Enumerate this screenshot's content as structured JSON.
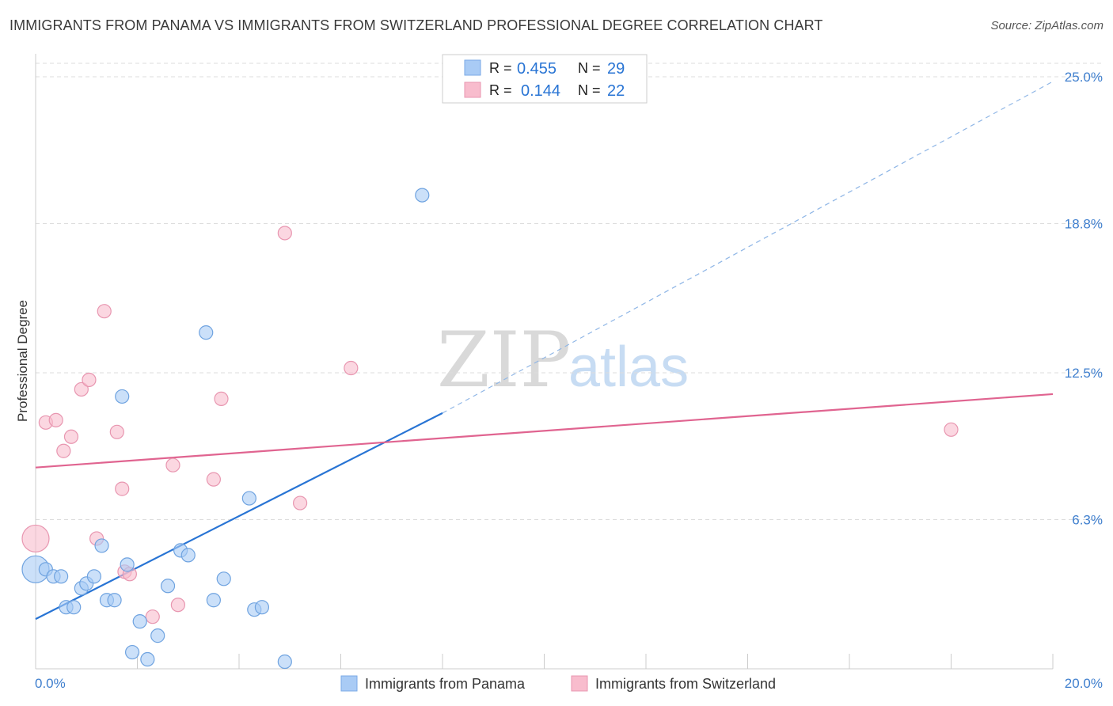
{
  "title": "IMMIGRANTS FROM PANAMA VS IMMIGRANTS FROM SWITZERLAND PROFESSIONAL DEGREE CORRELATION CHART",
  "source": "Source: ZipAtlas.com",
  "watermark": {
    "zip": "ZIP",
    "atlas": "atlas"
  },
  "colors": {
    "panama": "#2874d4",
    "panama_fill": "#a9cbf5",
    "switzerland": "#e06490",
    "switzerland_fill": "#f8bccd",
    "tick_label": "#3f7fce",
    "grid": "#dddddd"
  },
  "legend_top": [
    {
      "r_label": "R =",
      "r_value": "0.455",
      "n_label": "N =",
      "n_value": "29"
    },
    {
      "r_label": "R =",
      "r_value": "0.144",
      "n_label": "N =",
      "n_value": "22"
    }
  ],
  "chart_data": {
    "type": "scatter",
    "title": "IMMIGRANTS FROM PANAMA VS IMMIGRANTS FROM SWITZERLAND PROFESSIONAL DEGREE CORRELATION CHART",
    "xlabel": "",
    "ylabel": "Professional Degree",
    "xlim": [
      0,
      20
    ],
    "ylim": [
      0,
      25
    ],
    "x_tick_labels": [
      "0.0%",
      "20.0%"
    ],
    "y_ticks": [
      6.3,
      12.5,
      18.8,
      25.0
    ],
    "y_tick_labels": [
      "6.3%",
      "12.5%",
      "18.8%",
      "25.0%"
    ],
    "grid": true,
    "legend_position": "top-center",
    "series": [
      {
        "name": "Immigrants from Panama",
        "R": 0.455,
        "N": 29,
        "trend": {
          "x0": 0,
          "y0": 2.1,
          "x1": 8.0,
          "y1": 10.8,
          "dashed_to_x": 20,
          "dashed_to_y": 24.8
        },
        "points": [
          {
            "x": 0.0,
            "y": 4.2,
            "big": true
          },
          {
            "x": 0.2,
            "y": 4.2
          },
          {
            "x": 0.35,
            "y": 3.9
          },
          {
            "x": 0.5,
            "y": 3.9
          },
          {
            "x": 0.6,
            "y": 2.6
          },
          {
            "x": 0.75,
            "y": 2.6
          },
          {
            "x": 0.9,
            "y": 3.4
          },
          {
            "x": 1.0,
            "y": 3.6
          },
          {
            "x": 1.15,
            "y": 3.9
          },
          {
            "x": 1.3,
            "y": 5.2
          },
          {
            "x": 1.4,
            "y": 2.9
          },
          {
            "x": 1.55,
            "y": 2.9
          },
          {
            "x": 1.7,
            "y": 11.5
          },
          {
            "x": 1.8,
            "y": 4.4
          },
          {
            "x": 1.9,
            "y": 0.7
          },
          {
            "x": 2.05,
            "y": 2.0
          },
          {
            "x": 2.2,
            "y": 0.4
          },
          {
            "x": 2.4,
            "y": 1.4
          },
          {
            "x": 2.6,
            "y": 3.5
          },
          {
            "x": 2.85,
            "y": 5.0
          },
          {
            "x": 3.0,
            "y": 4.8
          },
          {
            "x": 3.35,
            "y": 14.2
          },
          {
            "x": 3.5,
            "y": 2.9
          },
          {
            "x": 3.7,
            "y": 3.8
          },
          {
            "x": 4.2,
            "y": 7.2
          },
          {
            "x": 4.3,
            "y": 2.5
          },
          {
            "x": 4.45,
            "y": 2.6
          },
          {
            "x": 4.9,
            "y": 0.3
          },
          {
            "x": 7.6,
            "y": 20.0
          }
        ]
      },
      {
        "name": "Immigrants from Switzerland",
        "R": 0.144,
        "N": 22,
        "trend": {
          "x0": 0,
          "y0": 8.5,
          "x1": 20,
          "y1": 11.6
        },
        "points": [
          {
            "x": 0.0,
            "y": 5.5,
            "big": true
          },
          {
            "x": 0.2,
            "y": 10.4
          },
          {
            "x": 0.4,
            "y": 10.5
          },
          {
            "x": 0.55,
            "y": 9.2
          },
          {
            "x": 0.7,
            "y": 9.8
          },
          {
            "x": 0.9,
            "y": 11.8
          },
          {
            "x": 1.05,
            "y": 12.2
          },
          {
            "x": 1.2,
            "y": 5.5
          },
          {
            "x": 1.35,
            "y": 15.1
          },
          {
            "x": 1.6,
            "y": 10.0
          },
          {
            "x": 1.7,
            "y": 7.6
          },
          {
            "x": 1.75,
            "y": 4.1
          },
          {
            "x": 1.85,
            "y": 4.0
          },
          {
            "x": 2.3,
            "y": 2.2
          },
          {
            "x": 2.7,
            "y": 8.6
          },
          {
            "x": 2.8,
            "y": 2.7
          },
          {
            "x": 3.5,
            "y": 8.0
          },
          {
            "x": 3.65,
            "y": 11.4
          },
          {
            "x": 4.9,
            "y": 18.4
          },
          {
            "x": 5.2,
            "y": 7.0
          },
          {
            "x": 6.2,
            "y": 12.7
          },
          {
            "x": 18.0,
            "y": 10.1
          }
        ]
      }
    ]
  }
}
